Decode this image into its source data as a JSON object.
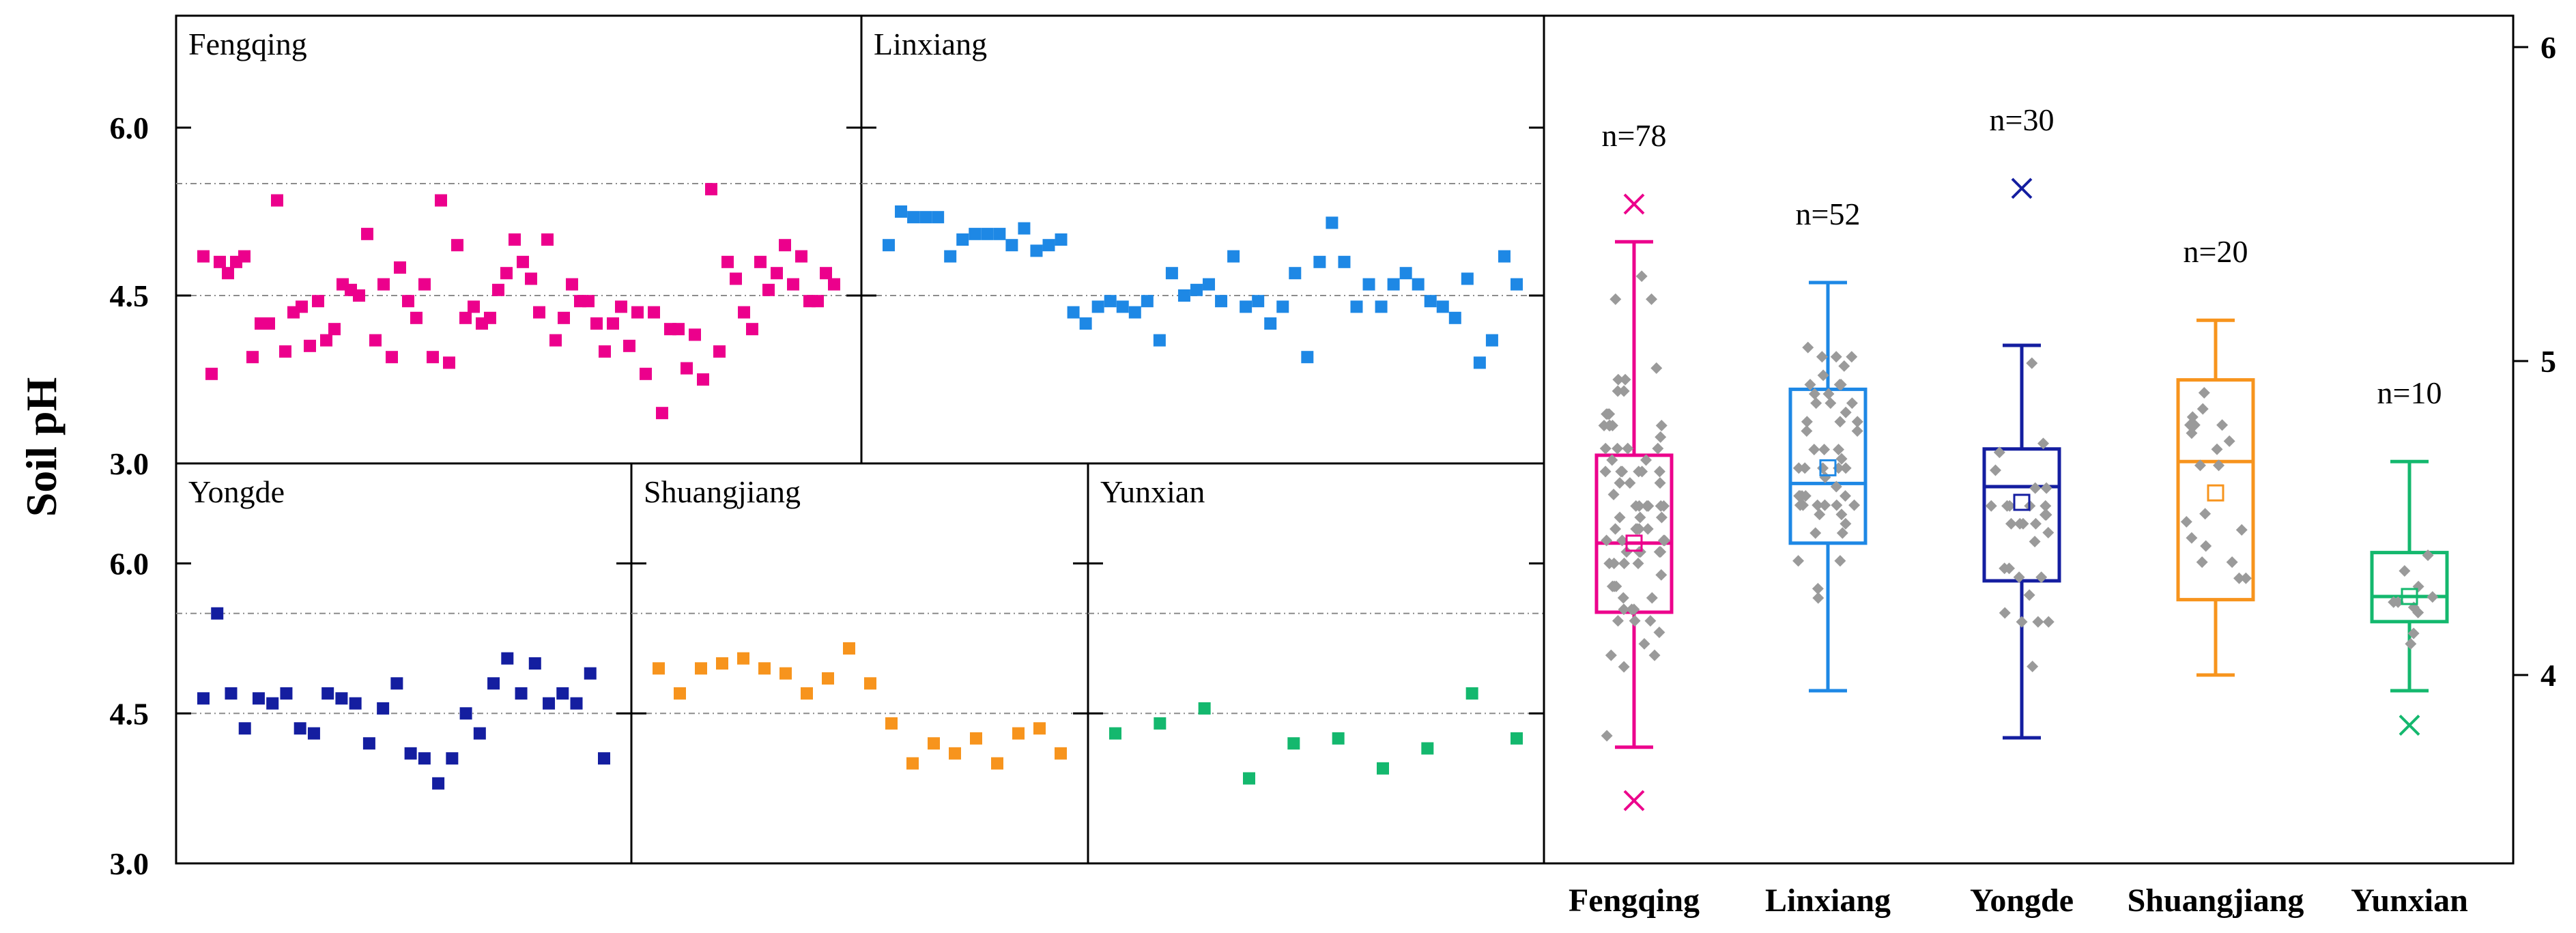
{
  "chart_data": {
    "type": "scatter",
    "ylabel": "Soil pH",
    "scatter_panels": {
      "ylim": [
        3.0,
        7.0
      ],
      "yticks": [
        3.0,
        4.5,
        6.0
      ],
      "ytick_labels": [
        "3.0",
        "4.5",
        "6.0"
      ],
      "reference_lines": [
        4.5,
        5.5
      ],
      "series": [
        {
          "name": "Fengqing",
          "color": "#ec008c",
          "values": [
            4.85,
            3.8,
            4.8,
            4.7,
            4.8,
            4.85,
            3.95,
            4.25,
            4.25,
            5.35,
            4.0,
            4.35,
            4.4,
            4.05,
            4.45,
            4.1,
            4.2,
            4.6,
            4.55,
            4.5,
            5.05,
            4.1,
            4.6,
            3.95,
            4.75,
            4.45,
            4.3,
            4.6,
            3.95,
            5.35,
            3.9,
            4.95,
            4.3,
            4.4,
            4.25,
            4.3,
            4.55,
            4.7,
            5.0,
            4.8,
            4.65,
            4.35,
            5.0,
            4.1,
            4.3,
            4.6,
            4.45,
            4.45,
            4.25,
            4.0,
            4.25,
            4.4,
            4.05,
            4.35,
            3.8,
            4.35,
            3.45,
            4.2,
            4.2,
            3.85,
            4.15,
            3.75,
            5.45,
            4.0,
            4.8,
            4.65,
            4.35,
            4.2,
            4.8,
            4.55,
            4.7,
            4.95,
            4.6,
            4.85,
            4.45,
            4.45,
            4.7,
            4.6
          ]
        },
        {
          "name": "Linxiang",
          "color": "#1e88e5",
          "values": [
            4.95,
            5.25,
            5.2,
            5.2,
            5.2,
            4.85,
            5.0,
            5.05,
            5.05,
            5.05,
            4.95,
            5.1,
            4.9,
            4.95,
            5.0,
            4.35,
            4.25,
            4.4,
            4.45,
            4.4,
            4.35,
            4.45,
            4.1,
            4.7,
            4.5,
            4.55,
            4.6,
            4.45,
            4.85,
            4.4,
            4.45,
            4.25,
            4.4,
            4.7,
            3.95,
            4.8,
            5.15,
            4.8,
            4.4,
            4.6,
            4.4,
            4.6,
            4.7,
            4.6,
            4.45,
            4.4,
            4.3,
            4.65,
            3.9,
            4.1,
            4.85,
            4.6
          ]
        },
        {
          "name": "Yongde",
          "color": "#141ea0",
          "values": [
            4.65,
            5.5,
            4.7,
            4.35,
            4.65,
            4.6,
            4.7,
            4.35,
            4.3,
            4.7,
            4.65,
            4.6,
            4.2,
            4.55,
            4.8,
            4.1,
            4.05,
            3.8,
            4.05,
            4.5,
            4.3,
            4.8,
            5.05,
            4.7,
            5.0,
            4.6,
            4.7,
            4.6,
            4.9,
            4.05
          ]
        },
        {
          "name": "Shuangjiang",
          "color": "#f7941d",
          "values": [
            4.95,
            4.7,
            4.95,
            5.0,
            5.05,
            4.95,
            4.9,
            4.7,
            4.85,
            5.15,
            4.8,
            4.4,
            4.0,
            4.2,
            4.1,
            4.25,
            4.0,
            4.3,
            4.35,
            4.1
          ]
        },
        {
          "name": "Yunxian",
          "color": "#14b86e",
          "values": [
            4.3,
            4.4,
            4.55,
            3.85,
            4.2,
            4.25,
            3.95,
            4.15,
            4.7,
            4.25
          ]
        }
      ]
    },
    "box_plot": {
      "ylim": [
        3.4,
        6.1
      ],
      "yticks": [
        4,
        5,
        6
      ],
      "ytick_labels": [
        "4",
        "5",
        "6"
      ],
      "categories": [
        "Fengqing",
        "Linxiang",
        "Yongde",
        "Shuangjiang",
        "Yunxian"
      ],
      "n_labels": [
        "n=78",
        "n=52",
        "n=30",
        "n=20",
        "n=10"
      ],
      "boxes": [
        {
          "name": "Fengqing",
          "color": "#ec008c",
          "whisker_low": 3.77,
          "q1": 4.2,
          "median": 4.42,
          "mean": 4.42,
          "q3": 4.7,
          "whisker_high": 5.38,
          "outliers": [
            3.6,
            5.5
          ]
        },
        {
          "name": "Linxiang",
          "color": "#1e88e5",
          "whisker_low": 3.95,
          "q1": 4.42,
          "median": 4.61,
          "mean": 4.66,
          "q3": 4.91,
          "whisker_high": 5.25,
          "outliers": []
        },
        {
          "name": "Yongde",
          "color": "#141ea0",
          "whisker_low": 3.8,
          "q1": 4.3,
          "median": 4.6,
          "mean": 4.55,
          "q3": 4.72,
          "whisker_high": 5.05,
          "outliers": [
            5.55
          ]
        },
        {
          "name": "Shuangjiang",
          "color": "#f7941d",
          "whisker_low": 4.0,
          "q1": 4.24,
          "median": 4.68,
          "mean": 4.58,
          "q3": 4.94,
          "whisker_high": 5.13,
          "outliers": []
        },
        {
          "name": "Yunxian",
          "color": "#14b86e",
          "whisker_low": 3.95,
          "q1": 4.17,
          "median": 4.25,
          "mean": 4.25,
          "q3": 4.39,
          "whisker_high": 4.68,
          "outliers": [
            3.84
          ]
        }
      ]
    }
  }
}
